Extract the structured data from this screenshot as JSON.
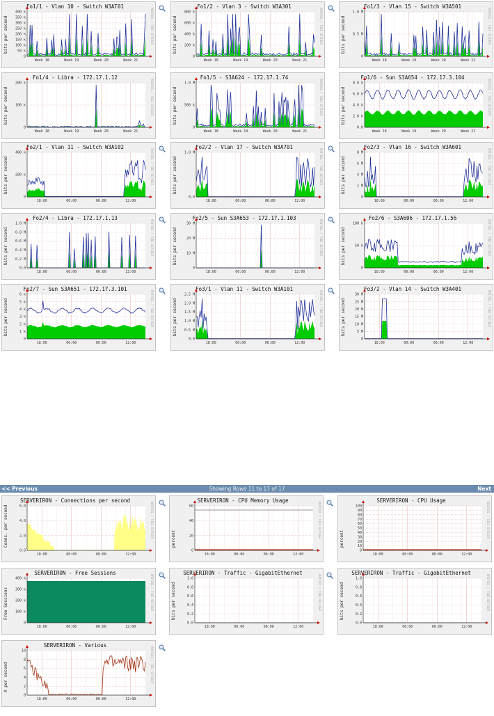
{
  "top_graphs": [
    {
      "title": "Fo1/1 - Vlan 10 - Switch W3AT01",
      "ylabel": "bits per second",
      "yticks": [
        "0",
        "50 k",
        "100 k",
        "150 k",
        "200 k",
        "250 k",
        "300 k",
        "350 k",
        "400 k"
      ],
      "xticks": [
        "Week 18",
        "Week 19",
        "Week 20",
        "Week 21"
      ]
    },
    {
      "title": "Fo1/2 - Vlan 3 - Switch W3A301",
      "ylabel": "bits per second",
      "yticks": [
        "0",
        "200 k",
        "400 k",
        "600 k",
        "800 k"
      ],
      "xticks": [
        "Week 18",
        "Week 19",
        "Week 20",
        "Week 21"
      ]
    },
    {
      "title": "Fo1/3 - Vlan 15 - Switch W3A501",
      "ylabel": "bits per second",
      "yticks": [
        "0",
        "0.5 M",
        "1.0 M"
      ],
      "xticks": [
        "Week 18",
        "Week 19",
        "Week 20",
        "Week 21"
      ]
    },
    {
      "title": "Fo1/4 - Libra - 172.17.1.12",
      "ylabel": "bits per second",
      "yticks": [
        "0",
        "100 k",
        "200 k"
      ],
      "xticks": [
        "Week 18",
        "Week 19",
        "Week 20",
        "Week 21"
      ]
    },
    {
      "title": "Fo1/5 - S3A624 - 172.17.1.74",
      "ylabel": "bits per second",
      "yticks": [
        "0",
        "500 k",
        "1.0 M"
      ],
      "xticks": [
        "Week 18",
        "Week 19",
        "Week 20",
        "Week 21"
      ]
    },
    {
      "title": "Fo1/6 - Sun S3A654 - 172.17.3.104",
      "ylabel": "bits per second",
      "yticks": [
        "0.0",
        "2.0 k",
        "4.0 k",
        "6.0 k",
        "8.0 k"
      ],
      "xticks": [
        "Week 18",
        "Week 19",
        "Week 20",
        "Week 21"
      ]
    },
    {
      "title": "Fo2/1 - Vlan 11 - Switch W3A102",
      "ylabel": "bits per second",
      "yticks": [
        "0",
        "200 k",
        "400 k"
      ],
      "xticks": [
        "18:00",
        "00:00",
        "06:00",
        "12:00"
      ]
    },
    {
      "title": "Fo2/2 - Vlan 17 - Switch W3A701",
      "ylabel": "bits per second",
      "yticks": [
        "0.0",
        "1.0 M"
      ],
      "xticks": [
        "18:00",
        "00:00",
        "06:00",
        "12:00"
      ]
    },
    {
      "title": "Fo2/3 - Vlan 16 - Switch W3A601",
      "ylabel": "bits per second",
      "yticks": [
        "0",
        "2 M",
        "4 M",
        "6 M",
        "8 M"
      ],
      "xticks": [
        "18:00",
        "00:00",
        "06:00",
        "12:00"
      ]
    },
    {
      "title": "Fo2/4 - Libra - 172.17.1.13",
      "ylabel": "bits per second",
      "yticks": [
        "0.0",
        "0.2 M",
        "0.4 M",
        "0.6 M",
        "0.8 M",
        "1.0 M"
      ],
      "xticks": [
        "18:00",
        "00:00",
        "06:00",
        "12:00"
      ]
    },
    {
      "title": "Fo2/5 - Sun S3A653 - 172.17.1.103",
      "ylabel": "bits per second",
      "yticks": [
        "0",
        "10 M",
        "20 M",
        "30 M"
      ],
      "xticks": [
        "18:00",
        "00:00",
        "06:00",
        "12:00"
      ]
    },
    {
      "title": "Fo2/6 - S3A606 - 172.17.1.56",
      "ylabel": "bits per second",
      "yticks": [
        "0",
        "50 k",
        "100 k"
      ],
      "xticks": [
        "18:00",
        "00:00",
        "06:00",
        "12:00"
      ]
    },
    {
      "title": "Fo2/7 - Sun S3A651 - 172.17.3.101",
      "ylabel": "bits per second",
      "yticks": [
        "0",
        "1 k",
        "2 k",
        "3 k",
        "4 k",
        "5 k",
        "6 k"
      ],
      "xticks": [
        "18:00",
        "00:00",
        "06:00",
        "12:00"
      ]
    },
    {
      "title": "Fo3/1 - Vlan 11 - Switch W3A101",
      "ylabel": "bits per second",
      "yticks": [
        "0.0",
        "0.5 M",
        "1.0 M",
        "1.5 M",
        "2.0 M",
        "2.5 M"
      ],
      "xticks": [
        "18:00",
        "00:00",
        "06:00",
        "12:00"
      ]
    },
    {
      "title": "Fo3/2 - Vlan 14 - Switch W3A401",
      "ylabel": "bits per second",
      "yticks": [
        "0",
        "5 M",
        "10 M",
        "15 M",
        "20 M",
        "25 M",
        "30 M"
      ],
      "xticks": [
        "18:00",
        "00:00",
        "06:00",
        "12:00"
      ]
    }
  ],
  "nav": {
    "previous": "<< Previous",
    "info": "Showing Rows 11 to 17 of 17",
    "next": "Next"
  },
  "bottom_graphs": [
    {
      "title": "SERVERIRON - Connections per second",
      "ylabel": "Conns. per second",
      "yticks": [
        "0.0",
        "2.0",
        "4.0",
        "6.0"
      ],
      "xticks": [
        "18:00",
        "00:00",
        "06:00",
        "12:00"
      ]
    },
    {
      "title": "SERVERIRON - CPU Memory Usage",
      "ylabel": "percent",
      "yticks": [
        "0",
        "20",
        "40",
        "60"
      ],
      "xticks": [
        "18:00",
        "00:00",
        "06:00",
        "12:00"
      ]
    },
    {
      "title": "SERVERIRON - CPU Usage",
      "ylabel": "percent",
      "yticks": [
        "0",
        "10",
        "20",
        "30",
        "40",
        "50",
        "60",
        "70",
        "80",
        "90",
        "100"
      ],
      "xticks": [
        "18:00",
        "00:00",
        "06:00",
        "12:00"
      ]
    },
    {
      "title": "SERVERIRON - Free Sessions",
      "ylabel": "Free Sessions",
      "yticks": [
        "0",
        "100 k",
        "200 k",
        "300 k",
        "400 k"
      ],
      "xticks": [
        "18:00",
        "00:00",
        "06:00",
        "12:00"
      ]
    },
    {
      "title": "SERVERIRON - Traffic - GigabitEthernet",
      "ylabel": "bits per second",
      "yticks": [
        "0.0",
        "0.2",
        "0.4",
        "0.6",
        "0.8",
        "1.0"
      ],
      "xticks": [
        "18:00",
        "00:00",
        "06:00",
        "12:00"
      ]
    },
    {
      "title": "SERVERIRON - Traffic - GigabitEthernet",
      "ylabel": "bits per second",
      "yticks": [
        "0.0",
        "0.2",
        "0.4",
        "0.6",
        "0.8",
        "1.0"
      ],
      "xticks": [
        "18:00",
        "00:00",
        "06:00",
        "12:00"
      ]
    },
    {
      "title": "SERVERIRON - Various",
      "ylabel": "X per second",
      "yticks": [
        "0",
        "2",
        "4",
        "6",
        "8",
        "10"
      ],
      "xticks": [
        "18:00",
        "00:00",
        "06:00",
        "12:00"
      ]
    }
  ],
  "rrd_watermark": "RRDTOOL / TOBI OETIKER",
  "colors": {
    "accent_blue": "#2233aa",
    "fill_green": "#00cc00",
    "fill_yellow": "#ffff88",
    "fill_teal": "#008060",
    "line_brown": "#a03010",
    "grid": "#e0b0b0",
    "nav_bar": "#6b8cae"
  }
}
